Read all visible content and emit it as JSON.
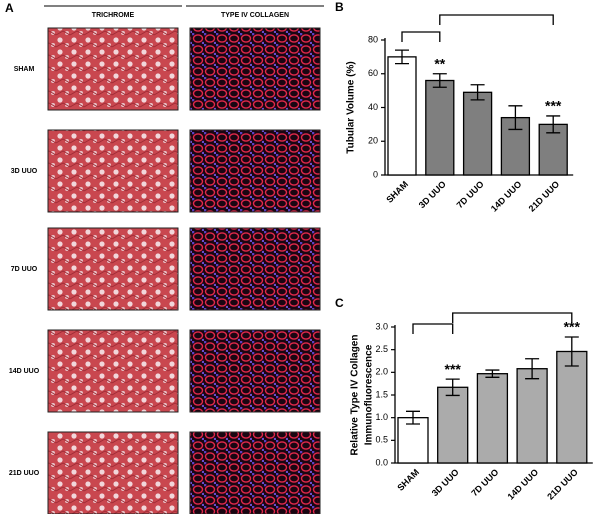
{
  "panel_a": {
    "label": "A",
    "columns": [
      "TRICHROME",
      "TYPE IV COLLAGEN"
    ],
    "rows": [
      "SHAM",
      "3D UUO",
      "7D UUO",
      "14D UUO",
      "21D UUO"
    ]
  },
  "chart_data": [
    {
      "type": "bar",
      "panel_label": "B",
      "ylabel": [
        "Tubular Volume (%)"
      ],
      "categories": [
        "SHAM",
        "3D UUO",
        "7D UUO",
        "14D UUO",
        "21D UUO"
      ],
      "series": [
        {
          "values": [
            70,
            56,
            49,
            34,
            30
          ],
          "errors": [
            4,
            4,
            4.5,
            7,
            5
          ],
          "colors": [
            "#ffffff",
            "#7f7f7f",
            "#7f7f7f",
            "#7f7f7f",
            "#7f7f7f"
          ]
        }
      ],
      "significance": [
        null,
        "**",
        null,
        null,
        "***"
      ],
      "ylim": [
        0,
        80
      ],
      "yticks": [
        0,
        20,
        40,
        60,
        80
      ]
    },
    {
      "type": "bar",
      "panel_label": "C",
      "ylabel": [
        "Relative Type IV Collagen",
        "Immunofluorescence"
      ],
      "categories": [
        "SHAM",
        "3D UUO",
        "7D UUO",
        "14D UUO",
        "21D UUO"
      ],
      "series": [
        {
          "values": [
            1.0,
            1.67,
            1.97,
            2.08,
            2.46
          ],
          "errors": [
            0.14,
            0.18,
            0.08,
            0.22,
            0.32
          ],
          "colors": [
            "#ffffff",
            "#ababab",
            "#ababab",
            "#ababab",
            "#ababab"
          ]
        }
      ],
      "significance": [
        null,
        "***",
        null,
        null,
        "***"
      ],
      "ylim": [
        0,
        3
      ],
      "yticks": [
        {
          "value": 0,
          "label": "0.0"
        },
        0.5,
        {
          "value": 1,
          "label": "1.0"
        },
        1.5,
        {
          "value": 2,
          "label": "2.0"
        },
        2.5,
        {
          "value": 3,
          "label": "3.0"
        }
      ]
    }
  ]
}
